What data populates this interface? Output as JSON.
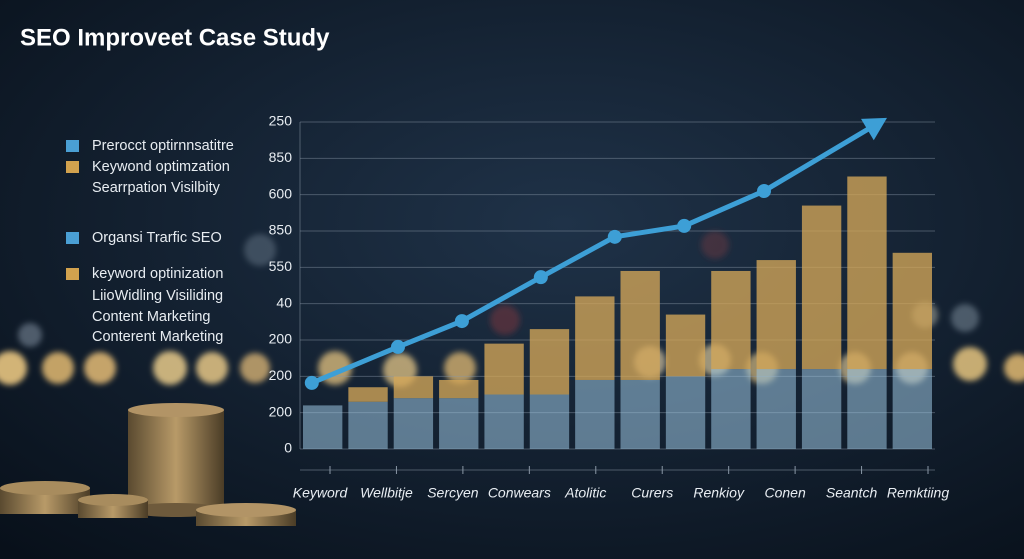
{
  "chart_data": {
    "type": "bar",
    "title": "SEO Improveet Case Study",
    "legend": [
      {
        "text": "Prerocct optirnnsatitre",
        "color": "#4a9fd4"
      },
      {
        "text": "Keywond optimzation",
        "color": "#d2a24e"
      },
      {
        "text": "Searrpation Visilbity",
        "color": null
      },
      {
        "text": "Organsi Trarfic SEO",
        "color": "#4a9fd4"
      },
      {
        "text": "keyword optinization",
        "color": "#d2a24e"
      },
      {
        "text": "LiioWidling Visiliding",
        "color": null
      },
      {
        "text": "Content Marketing",
        "color": null
      },
      {
        "text": "Conterent Marketing",
        "color": null
      }
    ],
    "xlabels": [
      "Keyword",
      "Wellbitje",
      "Sercyen",
      "Conwears",
      "Atolitic",
      "Curers",
      "Renkioy",
      "Conen",
      "Seantch",
      "Remktiing"
    ],
    "xlim": [
      0,
      14
    ],
    "ylim": [
      0,
      9
    ],
    "yticks": [
      {
        "value": 0,
        "label": "0"
      },
      {
        "value": 1,
        "label": "200"
      },
      {
        "value": 2,
        "label": "200"
      },
      {
        "value": 3,
        "label": "200"
      },
      {
        "value": 4,
        "label": "40"
      },
      {
        "value": 5,
        "label": "550"
      },
      {
        "value": 6,
        "label": "850"
      },
      {
        "value": 7,
        "label": "600"
      },
      {
        "value": 8,
        "label": "850"
      },
      {
        "value": 9,
        "label": "250"
      }
    ],
    "grid": true,
    "series": [
      {
        "color": "#9cc6e2",
        "values": [
          1.2,
          1.3,
          1.4,
          1.4,
          1.5,
          1.5,
          1.9,
          1.9,
          2.0,
          2.2,
          2.2,
          2.2,
          2.2,
          2.2
        ]
      },
      {
        "color": "#d4a658",
        "values": [
          0,
          0.4,
          0.6,
          0.5,
          1.4,
          1.8,
          2.3,
          3.0,
          1.7,
          2.7,
          3.0,
          4.5,
          5.3,
          3.2
        ]
      }
    ],
    "line": {
      "type": "line",
      "color": "#3d9fd6",
      "x": [
        0.26,
        2.16,
        3.57,
        5.31,
        6.94,
        8.47,
        10.23,
        12.79
      ],
      "values": [
        1.82,
        2.81,
        3.52,
        4.73,
        5.84,
        6.14,
        7.1,
        9.0
      ]
    }
  }
}
